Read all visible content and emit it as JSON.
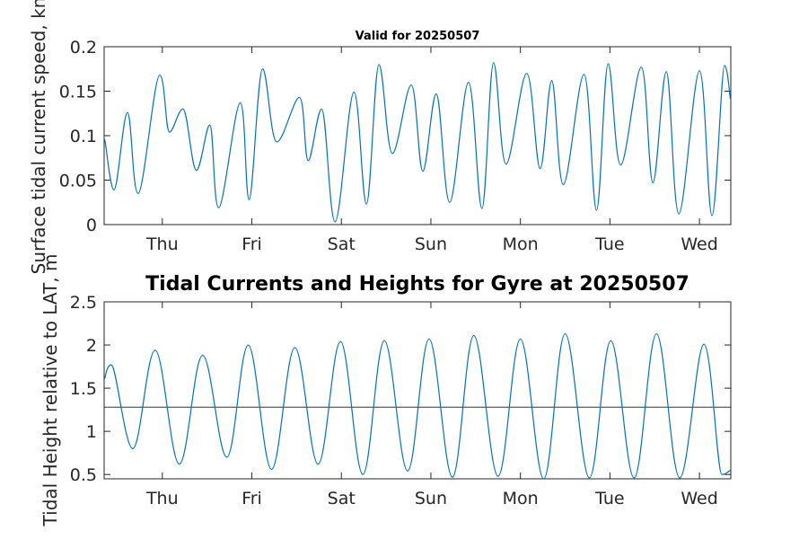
{
  "chart_data": [
    {
      "type": "line",
      "title": "Valid for 20250507",
      "ylabel": "Surface tidal current speed, kn",
      "xlabel": "",
      "x_unit": "day",
      "xlim": [
        0,
        7
      ],
      "xtick_labels": [
        "Thu",
        "Fri",
        "Sat",
        "Sun",
        "Mon",
        "Tue",
        "Wed"
      ],
      "ylim": [
        0,
        0.2
      ],
      "ytick_labels": [
        "0",
        "0.05",
        "0.1",
        "0.15",
        "0.2"
      ],
      "grid": false,
      "series": [
        {
          "color": "#0072BD",
          "x": [
            0.0,
            0.11,
            0.26,
            0.38,
            0.62,
            0.73,
            0.88,
            1.03,
            1.18,
            1.28,
            1.52,
            1.62,
            1.77,
            1.93,
            2.18,
            2.28,
            2.43,
            2.58,
            2.79,
            2.93,
            3.07,
            3.22,
            3.43,
            3.56,
            3.71,
            3.86,
            4.07,
            4.22,
            4.35,
            4.49,
            4.72,
            4.87,
            5.0,
            5.13,
            5.36,
            5.5,
            5.63,
            5.77,
            6.0,
            6.13,
            6.28,
            6.42,
            6.65,
            6.79,
            6.93,
            7.0
          ],
          "y": [
            0.097,
            0.039,
            0.126,
            0.035,
            0.168,
            0.104,
            0.13,
            0.061,
            0.112,
            0.019,
            0.137,
            0.028,
            0.175,
            0.093,
            0.143,
            0.072,
            0.13,
            0.003,
            0.149,
            0.023,
            0.18,
            0.08,
            0.157,
            0.06,
            0.147,
            0.025,
            0.16,
            0.018,
            0.182,
            0.068,
            0.17,
            0.063,
            0.162,
            0.045,
            0.169,
            0.016,
            0.181,
            0.067,
            0.177,
            0.047,
            0.172,
            0.012,
            0.173,
            0.01,
            0.179,
            0.14
          ]
        }
      ]
    },
    {
      "type": "line",
      "title": "Tidal Currents and Heights for Gyre at 20250507",
      "ylabel": "Tidal Height relative to LAT, m",
      "xlabel": "",
      "x_unit": "day",
      "xlim": [
        0,
        7
      ],
      "xtick_labels": [
        "Thu",
        "Fri",
        "Sat",
        "Sun",
        "Mon",
        "Tue",
        "Wed"
      ],
      "ylim": [
        0.45,
        2.5
      ],
      "ytick_labels": [
        "0.5",
        "1",
        "1.5",
        "2",
        "2.5"
      ],
      "grid": false,
      "reference_line": 1.28,
      "series": [
        {
          "color": "#0072BD",
          "x": [
            0.0,
            0.08,
            0.32,
            0.57,
            0.84,
            1.1,
            1.37,
            1.61,
            1.87,
            2.13,
            2.39,
            2.64,
            2.89,
            3.13,
            3.39,
            3.63,
            3.89,
            4.13,
            4.4,
            4.65,
            4.91,
            5.15,
            5.42,
            5.66,
            5.92,
            6.17,
            6.43,
            6.7,
            6.9,
            7.0
          ],
          "y": [
            1.6,
            1.77,
            0.8,
            1.94,
            0.62,
            1.88,
            0.7,
            2.0,
            0.56,
            1.97,
            0.62,
            2.04,
            0.5,
            2.05,
            0.54,
            2.07,
            0.47,
            2.11,
            0.48,
            2.07,
            0.45,
            2.13,
            0.46,
            2.05,
            0.46,
            2.13,
            0.46,
            2.01,
            0.5,
            0.55
          ]
        }
      ]
    }
  ]
}
